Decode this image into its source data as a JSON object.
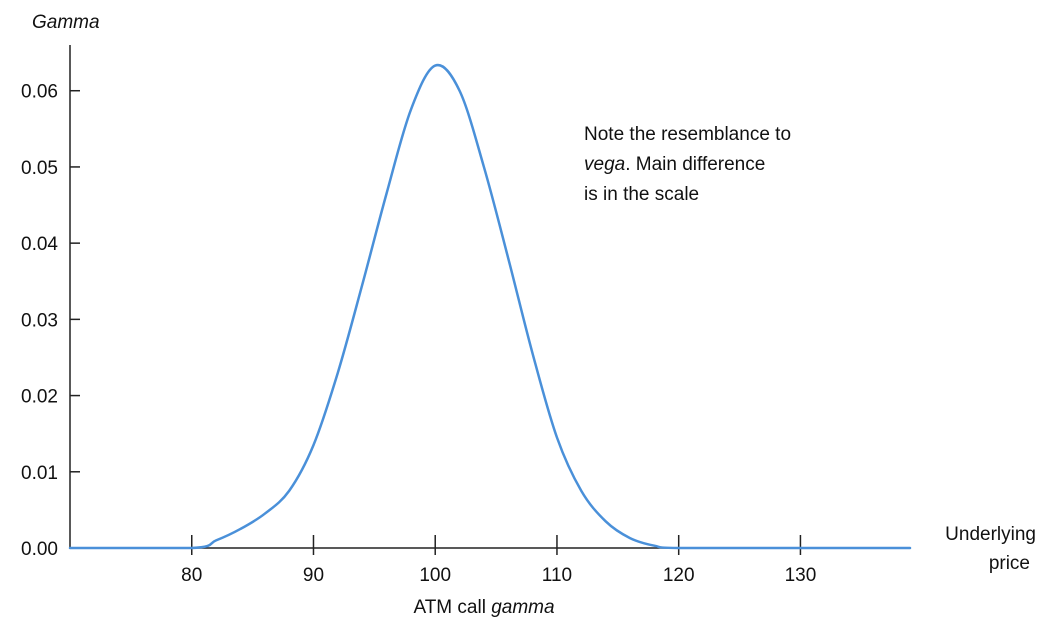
{
  "chart_data": {
    "type": "line",
    "title": "",
    "caption_prefix": "ATM call ",
    "caption_emph": "gamma",
    "ylabel": "Gamma",
    "xlabel_line1": "Underlying",
    "xlabel_line2": "price",
    "xlim": [
      70,
      139
    ],
    "ylim": [
      0,
      0.066
    ],
    "x_ticks": [
      80,
      90,
      100,
      110,
      120,
      130
    ],
    "x_tick_labels": [
      "80",
      "90",
      "100",
      "110",
      "120",
      "130"
    ],
    "y_ticks": [
      0.0,
      0.01,
      0.02,
      0.03,
      0.04,
      0.05,
      0.06
    ],
    "y_tick_labels": [
      "0.00",
      "0.01",
      "0.02",
      "0.03",
      "0.04",
      "0.05",
      "0.06"
    ],
    "grid": false,
    "line_color": "#4a90d9",
    "series": [
      {
        "x": [
          70,
          80,
          82,
          84,
          86,
          88,
          90,
          92,
          94,
          96,
          98,
          100,
          102,
          104,
          106,
          108,
          110,
          112,
          114,
          116,
          118,
          120,
          130,
          139
        ],
        "values": [
          0.0,
          0.0,
          0.001,
          0.0025,
          0.0045,
          0.0075,
          0.0135,
          0.023,
          0.0345,
          0.0465,
          0.0575,
          0.0633,
          0.06,
          0.05,
          0.038,
          0.0255,
          0.0145,
          0.0075,
          0.0035,
          0.0013,
          0.0003,
          0.0,
          0.0,
          0.0
        ]
      }
    ],
    "annotation": {
      "line1": "Note the resemblance to",
      "line2_emph": "vega",
      "line2_rest": ". Main difference",
      "line3": "is in the scale"
    }
  }
}
